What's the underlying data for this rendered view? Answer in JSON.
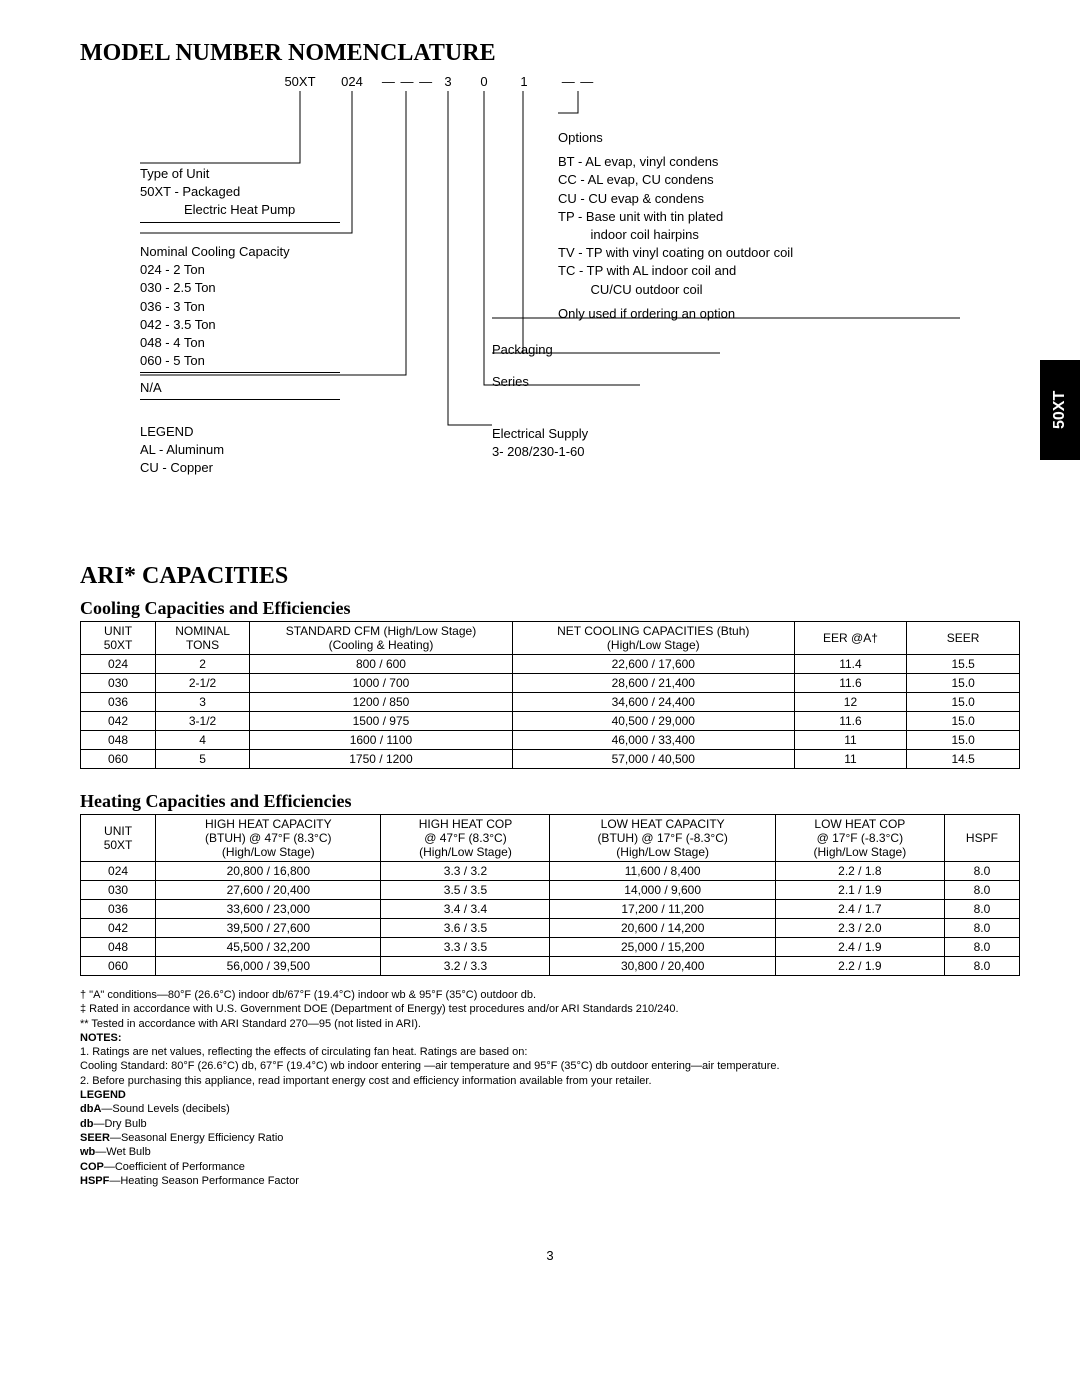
{
  "side_tab": "50XT",
  "page_number": "3",
  "nomenclature": {
    "title": "MODEL NUMBER NOMENCLATURE",
    "segments": [
      "50XT",
      "024",
      "— — —",
      "3",
      "0",
      "1",
      "— —"
    ],
    "left": {
      "type_unit_label": "Type of Unit",
      "type_unit_line": "50XT -  Packaged",
      "type_unit_line2": "Electric Heat Pump",
      "nominal_label": "Nominal Cooling Capacity",
      "nominal_rows": [
        "024 - 2 Ton",
        "030 - 2.5 Ton",
        "036 - 3 Ton",
        "042 - 3.5 Ton",
        "048 - 4 Ton",
        "060 - 5 Ton"
      ],
      "na": "N/A",
      "legend_label": "LEGEND",
      "legend_rows": [
        "AL - Aluminum",
        "CU - Copper"
      ]
    },
    "right": {
      "options_label": "Options",
      "options_rows": [
        "BT -  AL evap, vinyl condens",
        "CC -  AL evap, CU condens",
        "CU -  CU evap & condens",
        "TP -  Base unit with tin plated",
        "         indoor coil hairpins",
        "TV -  TP with vinyl coating on outdoor coil",
        "TC -  TP with AL indoor coil and",
        "         CU/CU outdoor coil"
      ],
      "options_note": "Only used if ordering an option",
      "packaging": "Packaging",
      "series": "Series",
      "electrical_label": "Electrical Supply",
      "electrical_row": "3- 208/230-1-60"
    }
  },
  "ari": {
    "title": "ARI* CAPACITIES",
    "cooling_sub": "Cooling Capacities and Efficiencies",
    "cooling_headers": [
      "UNIT\n50XT",
      "NOMINAL\nTONS",
      "STANDARD CFM  (High/Low Stage)\n(Cooling & Heating)",
      "NET COOLING CAPACITIES (Btuh)\n(High/Low Stage)",
      "EER @A†",
      "SEER"
    ],
    "cooling_rows": [
      [
        "024",
        "2",
        "800 / 600",
        "22,600 / 17,600",
        "11.4",
        "15.5"
      ],
      [
        "030",
        "2-1/2",
        "1000 / 700",
        "28,600 / 21,400",
        "11.6",
        "15.0"
      ],
      [
        "036",
        "3",
        "1200 / 850",
        "34,600 / 24,400",
        "12",
        "15.0"
      ],
      [
        "042",
        "3-1/2",
        "1500 / 975",
        "40,500 / 29,000",
        "11.6",
        "15.0"
      ],
      [
        "048",
        "4",
        "1600 / 1100",
        "46,000 / 33,400",
        "11",
        "15.0"
      ],
      [
        "060",
        "5",
        "1750 / 1200",
        "57,000 / 40,500",
        "11",
        "14.5"
      ]
    ],
    "heating_sub": "Heating Capacities and Efficiencies",
    "heating_headers": [
      "UNIT\n50XT",
      "HIGH HEAT CAPACITY\n(BTUH) @ 47°F (8.3°C)\n(High/Low Stage)",
      "HIGH HEAT COP\n@ 47°F (8.3°C)\n(High/Low Stage)",
      "LOW HEAT CAPACITY\n(BTUH) @ 17°F (-8.3°C)\n(High/Low Stage)",
      "LOW HEAT COP\n@ 17°F (-8.3°C)\n(High/Low Stage)",
      "HSPF"
    ],
    "heating_rows": [
      [
        "024",
        "20,800 / 16,800",
        "3.3 / 3.2",
        "11,600 / 8,400",
        "2.2 / 1.8",
        "8.0"
      ],
      [
        "030",
        "27,600 / 20,400",
        "3.5 / 3.5",
        "14,000 / 9,600",
        "2.1 / 1.9",
        "8.0"
      ],
      [
        "036",
        "33,600 / 23,000",
        "3.4 / 3.4",
        "17,200 / 11,200",
        "2.4 / 1.7",
        "8.0"
      ],
      [
        "042",
        "39,500 / 27,600",
        "3.6 / 3.5",
        "20,600 / 14,200",
        "2.3 / 2.0",
        "8.0"
      ],
      [
        "048",
        "45,500 / 32,200",
        "3.3 / 3.5",
        "25,000 / 15,200",
        "2.4 / 1.9",
        "8.0"
      ],
      [
        "060",
        "56,000 / 39,500",
        "3.2 / 3.3",
        "30,800 / 20,400",
        "2.2 / 1.9",
        "8.0"
      ]
    ]
  },
  "footnotes": {
    "dagger": "†   \"A\" conditions—80°F (26.6°C) indoor db/67°F (19.4°C) indoor wb & 95°F (35°C) outdoor db.",
    "ddagger": "‡   Rated in accordance with U.S. Government DOE (Department of Energy) test procedures and/or ARI Standards 210/240.",
    "doublestar": "**  Tested in accordance with ARI Standard 270—95 (not listed in ARI).",
    "notes_label": "NOTES:",
    "note1": "1. Ratings are net values, reflecting the effects of circulating fan heat. Ratings are based on:",
    "note1b": "Cooling Standard: 80°F (26.6°C) db, 67°F (19.4°C) wb indoor entering —air temperature and 95°F (35°C) db outdoor entering—air temperature.",
    "note2": "2. Before purchasing this appliance, read important energy cost and efficiency information available from your retailer.",
    "legend_label": "LEGEND",
    "legend_rows": [
      [
        "dbA",
        "—Sound Levels (decibels)"
      ],
      [
        "db",
        "—Dry Bulb"
      ],
      [
        "SEER",
        "—Seasonal Energy Efficiency Ratio"
      ],
      [
        "wb",
        "—Wet Bulb"
      ],
      [
        "COP",
        "—Coefficient of Performance"
      ],
      [
        "HSPF",
        "—Heating Season Performance Factor"
      ]
    ]
  },
  "style": {
    "cooling_col_widths": [
      "8%",
      "10%",
      "28%",
      "30%",
      "12%",
      "12%"
    ],
    "heating_col_widths": [
      "8%",
      "24%",
      "18%",
      "24%",
      "18%",
      "8%"
    ]
  }
}
